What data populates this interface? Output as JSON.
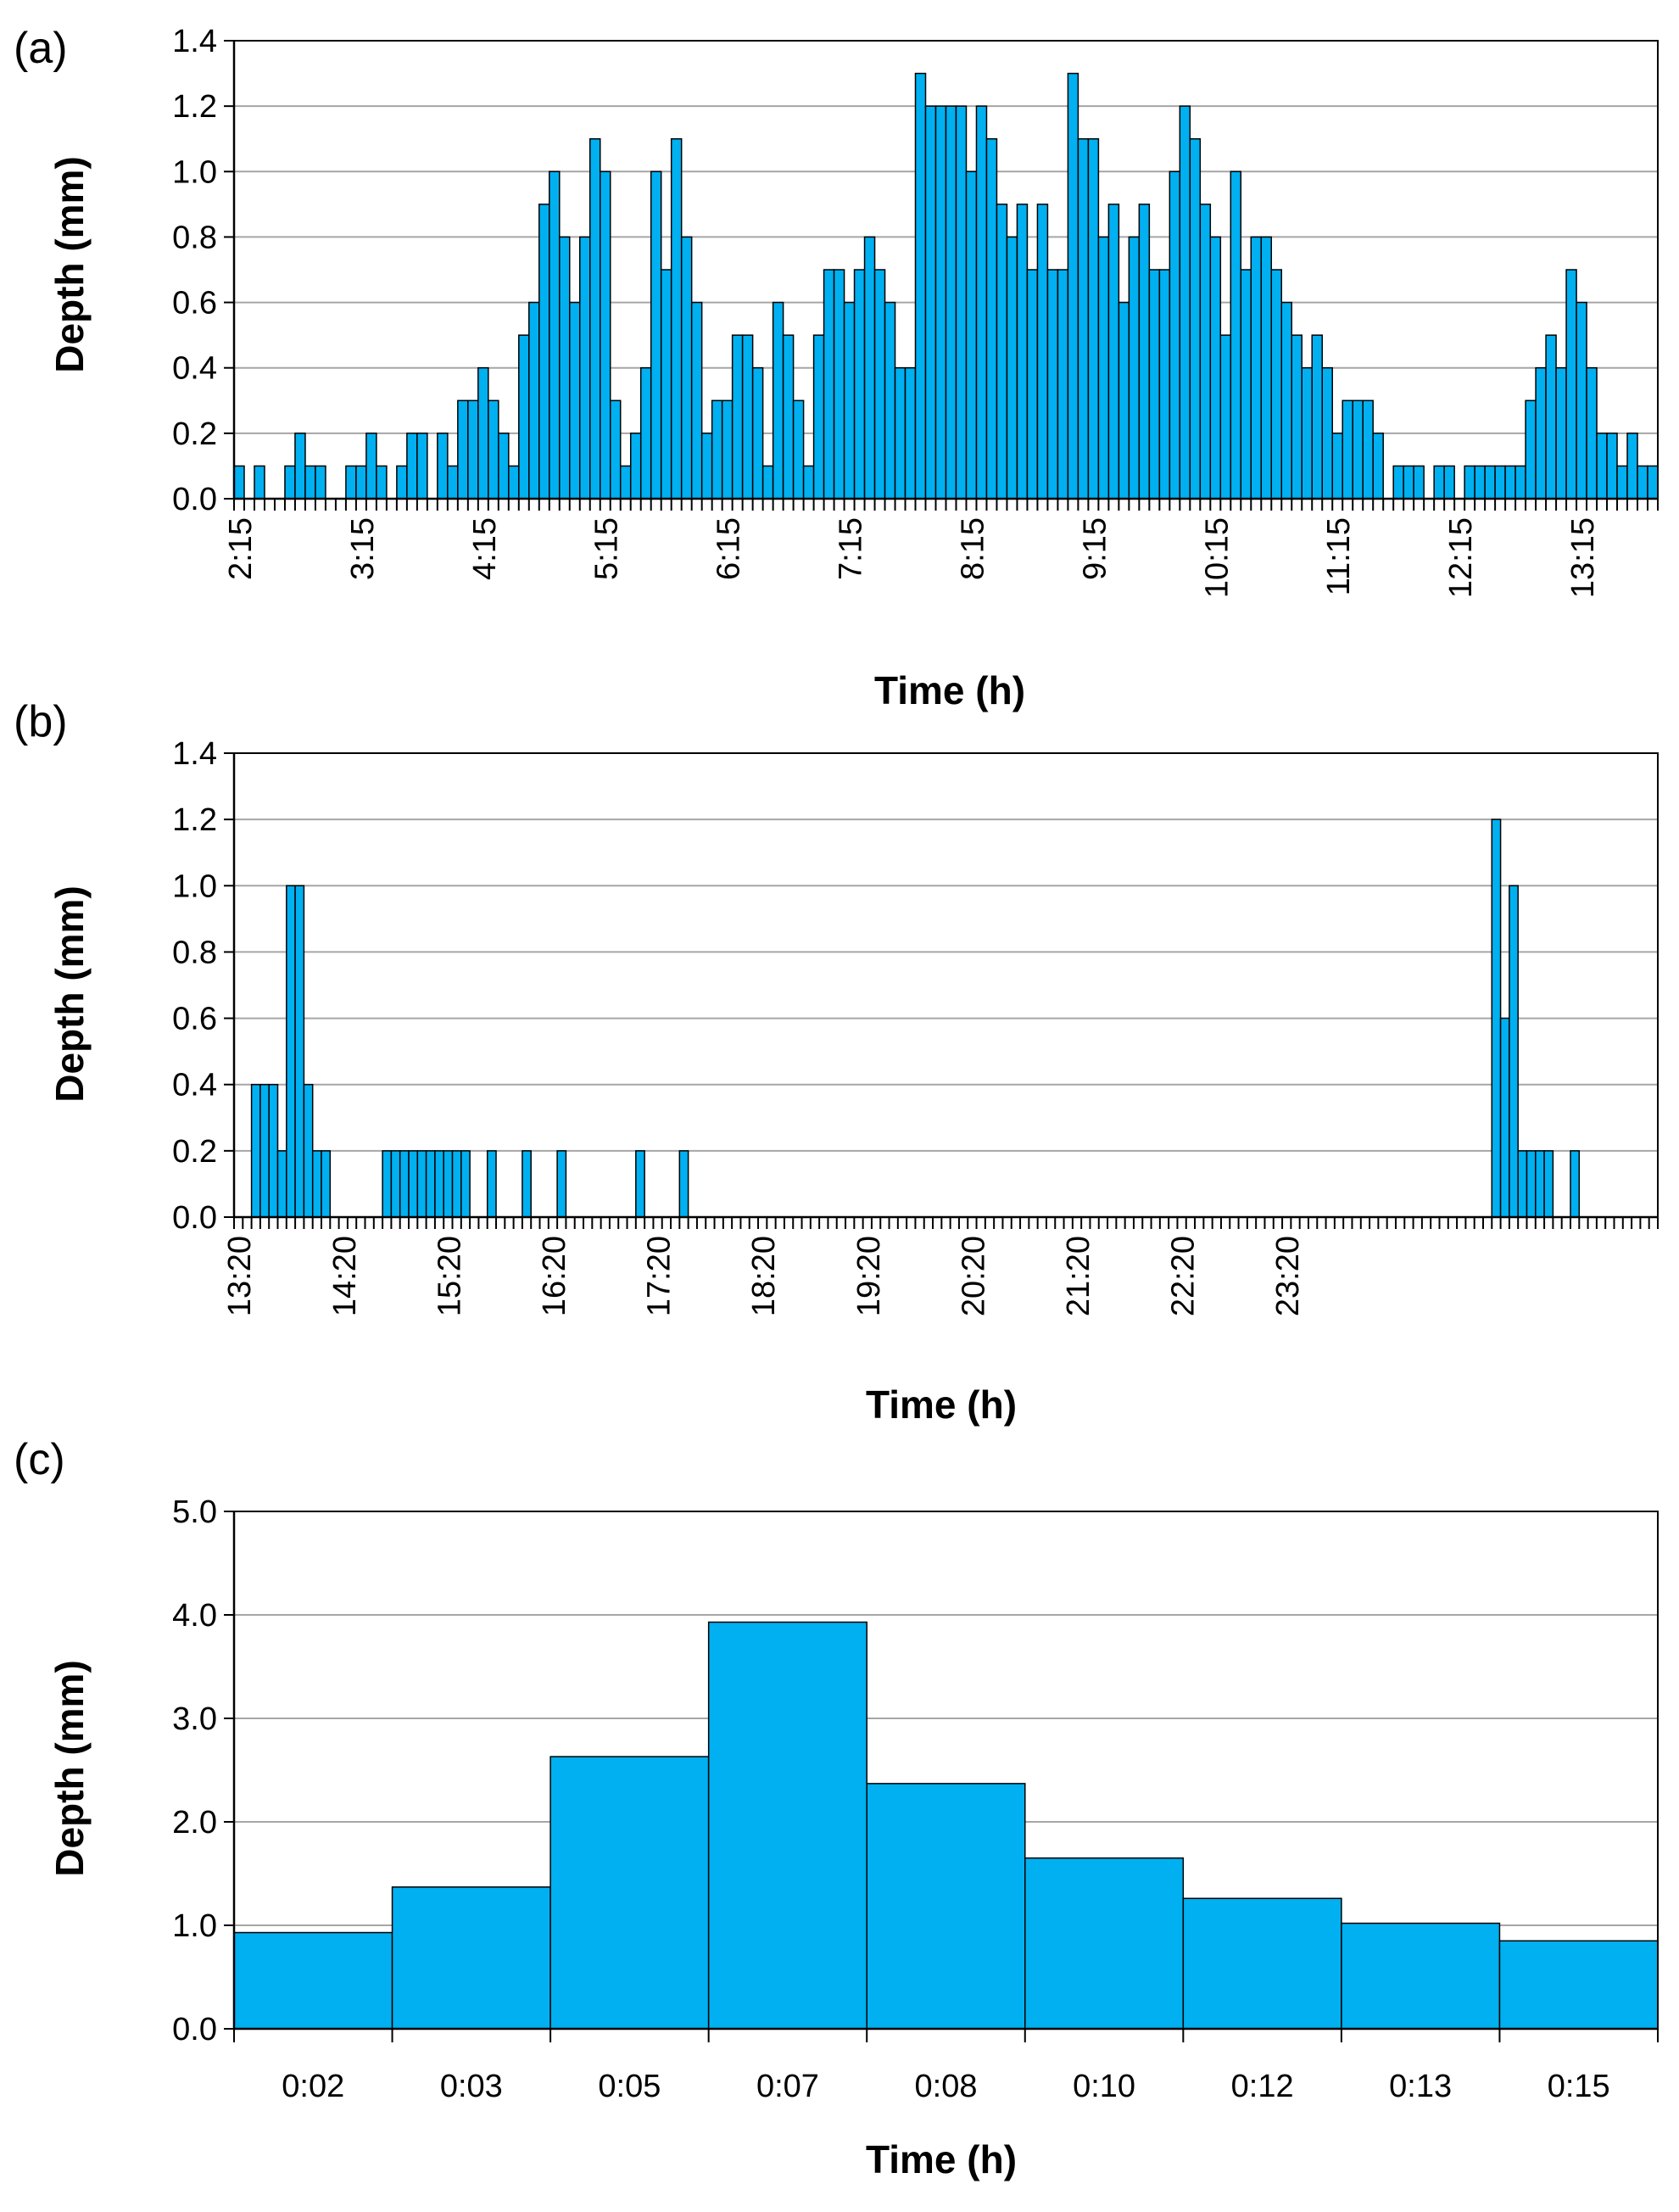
{
  "colors": {
    "bar": "#00B0F0",
    "grid": "#A6A6A6",
    "axis": "#000000"
  },
  "chart_data": [
    {
      "panel": "(a)",
      "type": "bar",
      "xlabel": "Time (h)",
      "ylabel": "Depth (mm)",
      "ylim": [
        0,
        1.4
      ],
      "yticks": [
        "0.0",
        "0.2",
        "0.4",
        "0.6",
        "0.8",
        "1.0",
        "1.2",
        "1.4"
      ],
      "x_tick_labels": [
        "2:15",
        "3:15",
        "4:15",
        "5:15",
        "6:15",
        "7:15",
        "8:15",
        "9:15",
        "10:15",
        "11:15",
        "12:15",
        "13:15"
      ],
      "grid": true,
      "legend": "none",
      "values": [
        0.1,
        0,
        0.1,
        0,
        0,
        0.1,
        0.2,
        0.1,
        0.1,
        0,
        0,
        0.1,
        0.1,
        0.2,
        0.1,
        0,
        0.1,
        0.2,
        0.2,
        0,
        0.2,
        0.1,
        0.3,
        0.3,
        0.4,
        0.3,
        0.2,
        0.1,
        0.5,
        0.6,
        0.9,
        1.0,
        0.8,
        0.6,
        0.8,
        1.1,
        1.0,
        0.3,
        0.1,
        0.2,
        0.4,
        1.0,
        0.7,
        1.1,
        0.8,
        0.6,
        0.2,
        0.3,
        0.3,
        0.5,
        0.5,
        0.4,
        0.1,
        0.6,
        0.5,
        0.3,
        0.1,
        0.5,
        0.7,
        0.7,
        0.6,
        0.7,
        0.8,
        0.7,
        0.6,
        0.4,
        0.4,
        1.3,
        1.2,
        1.2,
        1.2,
        1.2,
        1.0,
        1.2,
        1.1,
        0.9,
        0.8,
        0.9,
        0.7,
        0.9,
        0.7,
        0.7,
        1.3,
        1.1,
        1.1,
        0.8,
        0.9,
        0.6,
        0.8,
        0.9,
        0.7,
        0.7,
        1.0,
        1.2,
        1.1,
        0.9,
        0.8,
        0.5,
        1.0,
        0.7,
        0.8,
        0.8,
        0.7,
        0.6,
        0.5,
        0.4,
        0.5,
        0.4,
        0.2,
        0.3,
        0.3,
        0.3,
        0.2,
        0,
        0.1,
        0.1,
        0.1,
        0,
        0.1,
        0.1,
        0,
        0.1,
        0.1,
        0.1,
        0.1,
        0.1,
        0.1,
        0.3,
        0.4,
        0.5,
        0.4,
        0.7,
        0.6,
        0.4,
        0.2,
        0.2,
        0.1,
        0.2,
        0.1,
        0.1
      ]
    },
    {
      "panel": "(b)",
      "type": "bar",
      "xlabel": "Time (h)",
      "ylabel": "Depth (mm)",
      "ylim": [
        0,
        1.4
      ],
      "yticks": [
        "0.0",
        "0.2",
        "0.4",
        "0.6",
        "0.8",
        "1.0",
        "1.2",
        "1.4"
      ],
      "x_tick_labels": [
        "13:20",
        "14:20",
        "15:20",
        "16:20",
        "17:20",
        "18:20",
        "19:20",
        "20:20",
        "21:20",
        "22:20",
        "23:20"
      ],
      "grid": true,
      "legend": "none",
      "values": [
        0,
        0,
        0.4,
        0.4,
        0.4,
        0.2,
        1.0,
        1.0,
        0.4,
        0.2,
        0.2,
        0,
        0,
        0,
        0,
        0,
        0,
        0.2,
        0.2,
        0.2,
        0.2,
        0.2,
        0.2,
        0.2,
        0.2,
        0.2,
        0.2,
        0,
        0,
        0.2,
        0,
        0,
        0,
        0.2,
        0,
        0,
        0,
        0.2,
        0,
        0,
        0,
        0,
        0,
        0,
        0,
        0,
        0.2,
        0,
        0,
        0,
        0,
        0.2,
        0,
        0,
        0,
        0,
        0,
        0,
        0,
        0,
        0,
        0,
        0,
        0,
        0,
        0,
        0,
        0,
        0,
        0,
        0,
        0,
        0,
        0,
        0,
        0,
        0,
        0,
        0,
        0,
        0,
        0,
        0,
        0,
        0,
        0,
        0,
        0,
        0,
        0,
        0,
        0,
        0,
        0,
        0,
        0,
        0,
        0,
        0,
        0,
        0,
        0,
        0,
        0,
        0,
        0,
        0,
        0,
        0,
        0,
        0,
        0,
        0,
        0,
        0,
        0,
        0,
        0,
        0,
        0,
        0,
        0,
        0,
        0,
        0,
        0,
        0,
        0,
        0,
        0,
        0,
        0,
        0,
        0,
        0,
        0,
        0,
        0,
        0,
        0,
        0,
        0,
        0,
        0,
        1.2,
        0.6,
        1.0,
        0.2,
        0.2,
        0.2,
        0.2,
        0,
        0,
        0.2,
        0,
        0,
        0,
        0,
        0,
        0,
        0,
        0,
        0
      ]
    },
    {
      "panel": "(c)",
      "type": "bar",
      "xlabel": "Time (h)",
      "ylabel": "Depth (mm)",
      "ylim": [
        0,
        5.0
      ],
      "yticks": [
        "0.0",
        "1.0",
        "2.0",
        "3.0",
        "4.0",
        "5.0"
      ],
      "categories": [
        "0:02",
        "0:03",
        "0:05",
        "0:07",
        "0:08",
        "0:10",
        "0:12",
        "0:13",
        "0:15"
      ],
      "grid": true,
      "legend": "none",
      "values": [
        0.93,
        1.37,
        2.63,
        3.93,
        2.37,
        1.65,
        1.26,
        1.02,
        0.85
      ]
    }
  ]
}
